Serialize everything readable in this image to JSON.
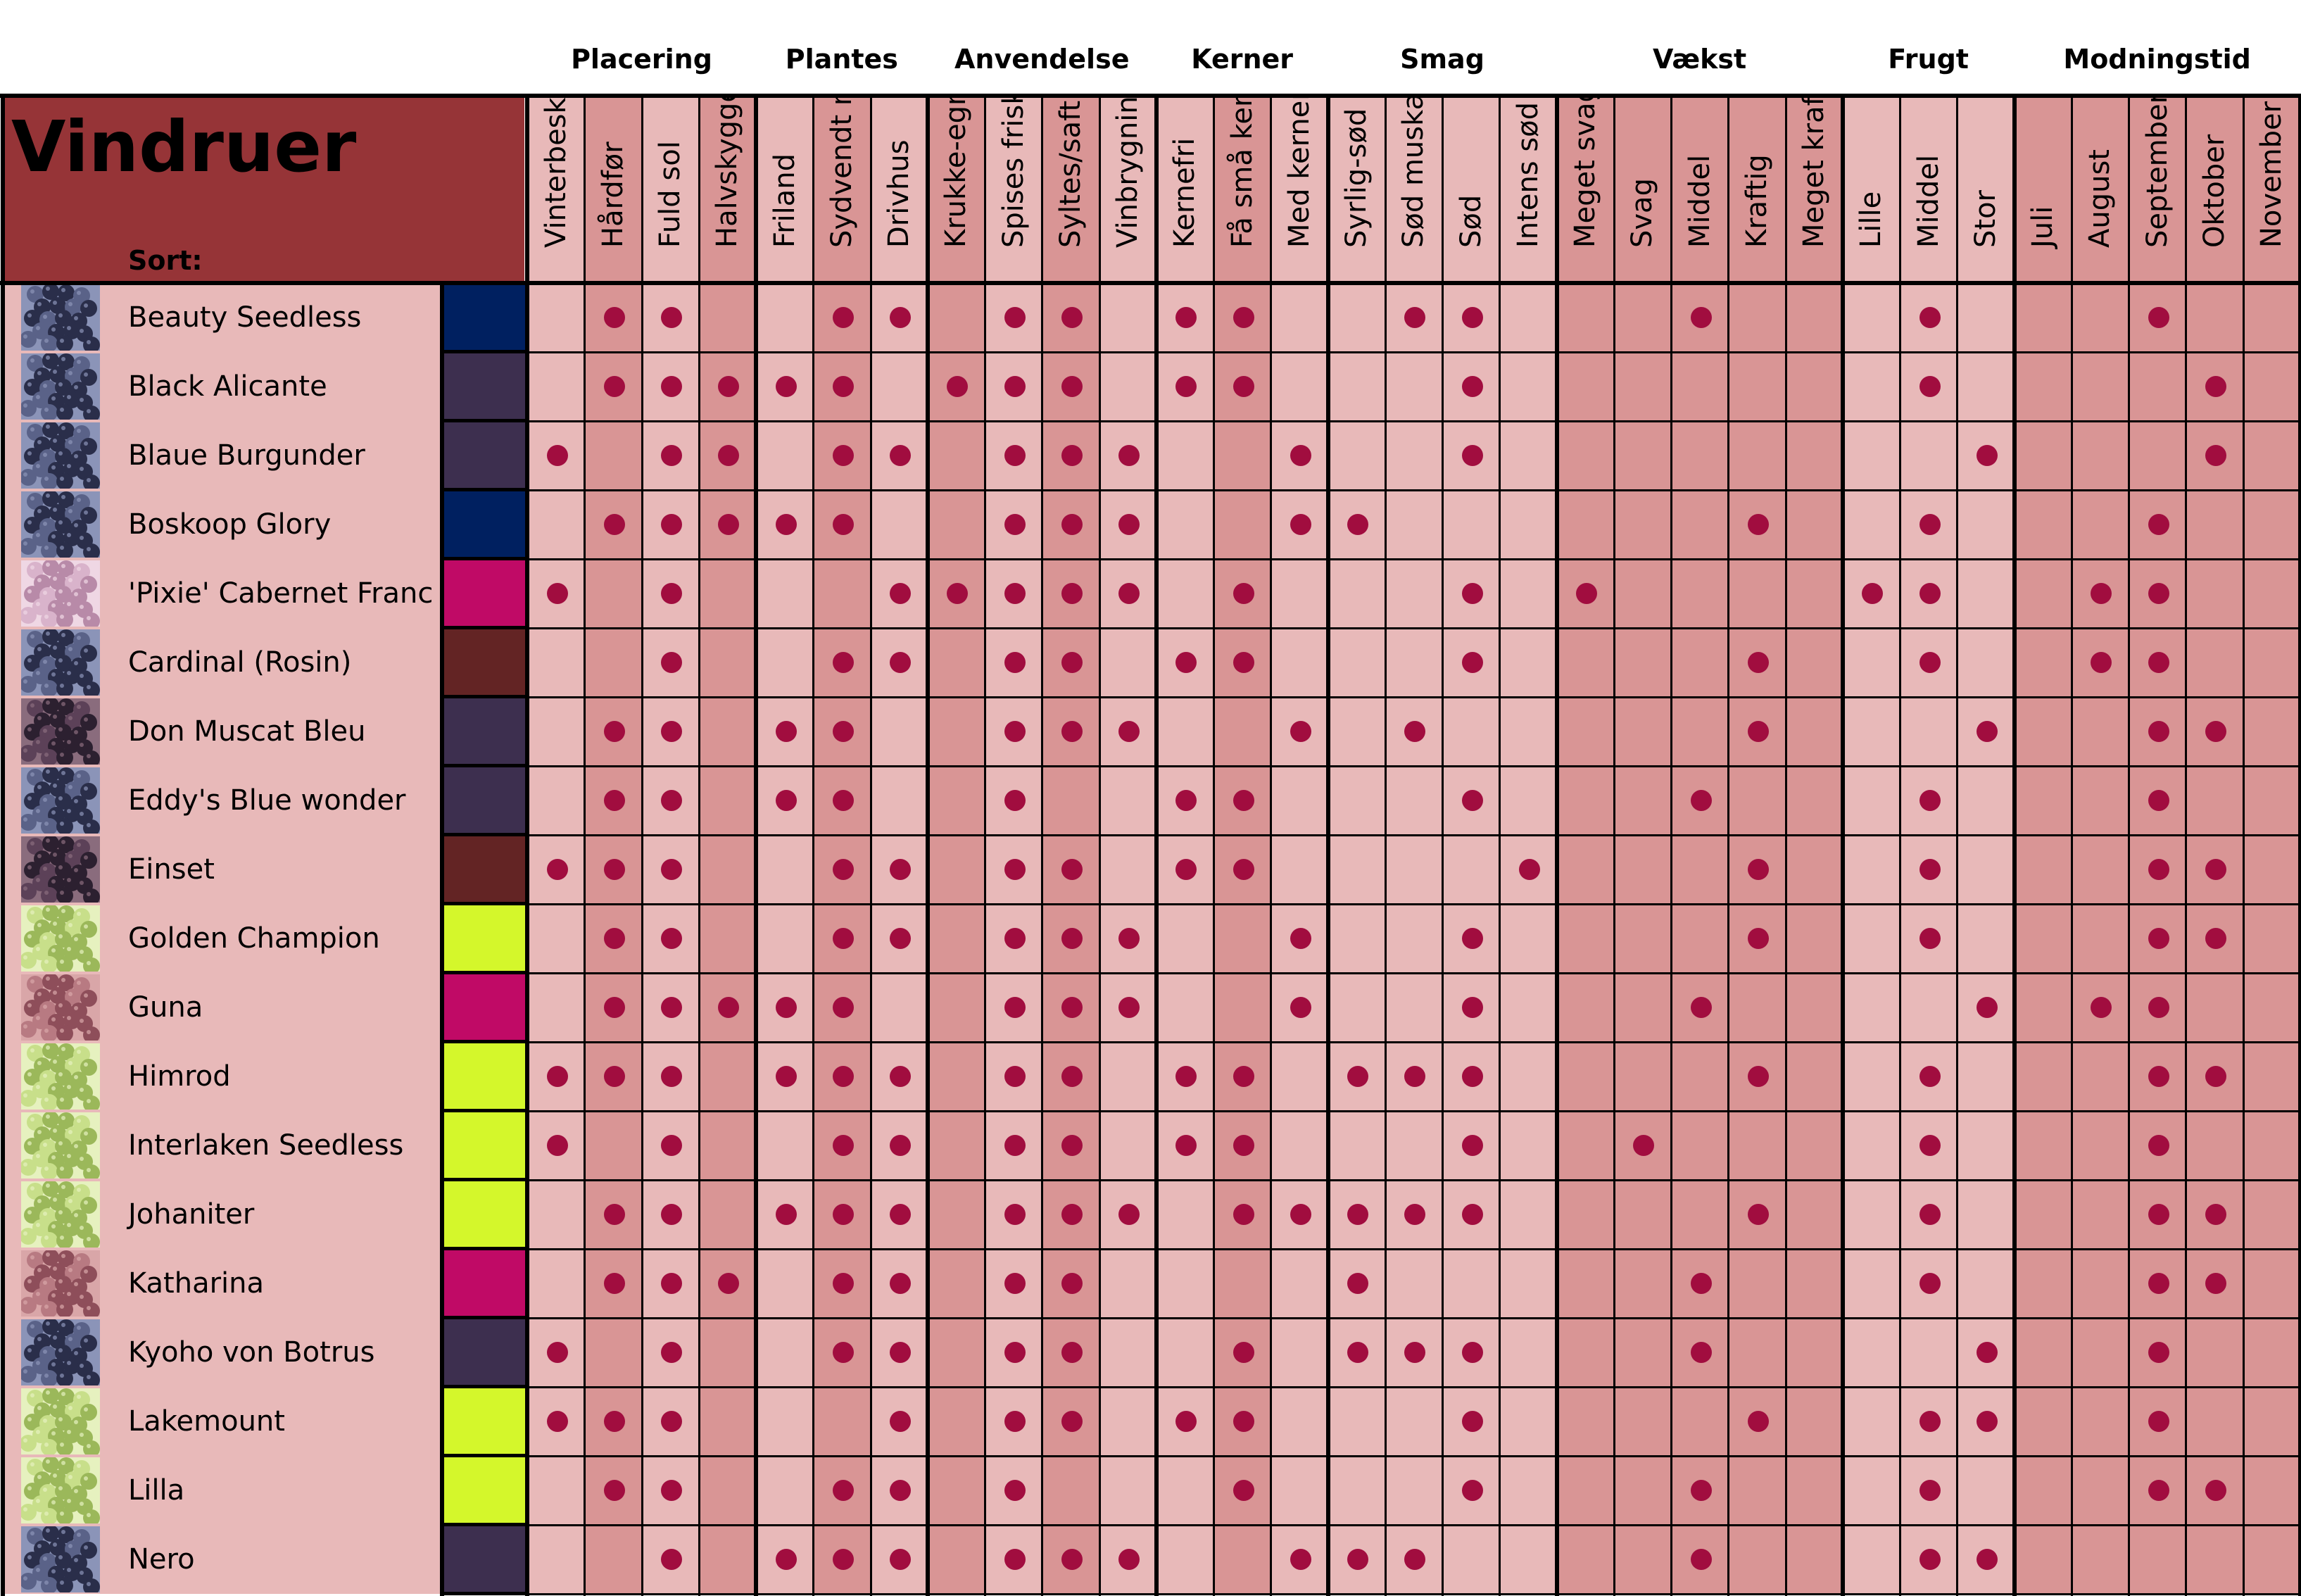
{
  "title": "Vindruer",
  "sort_label": "Sort:",
  "groups": [
    {
      "label": "Placering",
      "span": 4
    },
    {
      "label": "Plantes",
      "span": 3
    },
    {
      "label": "Anvendelse",
      "span": 4
    },
    {
      "label": "Kerner",
      "span": 3
    },
    {
      "label": "Smag",
      "span": 4
    },
    {
      "label": "Vækst",
      "span": 5
    },
    {
      "label": "Frugt",
      "span": 3
    },
    {
      "label": "Modningstid",
      "span": 5
    }
  ],
  "columns": [
    "Vinterbeskyttelse",
    "Hårdfør",
    "Fuld sol",
    "Halvskygge",
    "Friland",
    "Sydvendt mur",
    "Drivhus",
    "Krukke-egnet",
    "Spises frisk",
    "Syltes/saft",
    "Vinbrygning",
    "Kernefri",
    "Få små kerner",
    "Med kerner",
    "Syrlig-sød",
    "Sød muskat-",
    "Sød",
    "Intens sød",
    "Meget svag",
    "Svag",
    "Middel",
    "Kraftig",
    "Meget kraftig",
    "Lille",
    "Middel",
    "Stor",
    "Juli",
    "August",
    "September",
    "Oktober",
    "November"
  ],
  "colors": {
    "light_pink": "#e8b9b9",
    "dark_pink": "#d99595",
    "title_red": "#963437",
    "dot": "#a10d3f",
    "swatch_navy": "#002060",
    "swatch_purple": "#3d2f4f",
    "swatch_magenta": "#c00a66",
    "swatch_brown": "#632424",
    "swatch_lime": "#d4f72b"
  },
  "varieties": [
    {
      "name": "Beauty Seedless",
      "color": "#002060",
      "thumb": "blue-grape-thumbnail",
      "marks": [
        1,
        2,
        5,
        6,
        8,
        9,
        11,
        12,
        15,
        16,
        20,
        24,
        28
      ]
    },
    {
      "name": "Black Alicante",
      "color": "#3d2f4f",
      "thumb": "blue-grape-thumbnail",
      "marks": [
        1,
        2,
        3,
        4,
        5,
        7,
        8,
        9,
        11,
        12,
        16,
        24,
        29
      ]
    },
    {
      "name": "Blaue Burgunder",
      "color": "#3d2f4f",
      "thumb": "blue-grape-thumbnail",
      "marks": [
        0,
        2,
        3,
        5,
        6,
        8,
        9,
        10,
        13,
        16,
        25,
        29
      ]
    },
    {
      "name": "Boskoop Glory",
      "color": "#002060",
      "thumb": "blue-grape-thumbnail",
      "marks": [
        1,
        2,
        3,
        4,
        5,
        8,
        9,
        10,
        13,
        14,
        21,
        24,
        28
      ]
    },
    {
      "name": "'Pixie' Cabernet Franc",
      "color": "#c00a66",
      "thumb": "pink-grape-thumbnail",
      "marks": [
        0,
        2,
        6,
        7,
        8,
        9,
        10,
        12,
        16,
        18,
        23,
        24,
        27,
        28
      ]
    },
    {
      "name": "Cardinal (Rosin)",
      "color": "#632424",
      "thumb": "blue-grape-thumbnail",
      "marks": [
        2,
        5,
        6,
        8,
        9,
        11,
        12,
        16,
        21,
        24,
        27,
        28
      ]
    },
    {
      "name": "Don Muscat Bleu",
      "color": "#3d2f4f",
      "thumb": "purple-grape-thumbnail",
      "marks": [
        1,
        2,
        4,
        5,
        8,
        9,
        10,
        13,
        15,
        21,
        25,
        28,
        29
      ]
    },
    {
      "name": "Eddy's Blue wonder",
      "color": "#3d2f4f",
      "thumb": "blue-grape-thumbnail",
      "marks": [
        1,
        2,
        4,
        5,
        8,
        11,
        12,
        16,
        20,
        24,
        28
      ]
    },
    {
      "name": "Einset",
      "color": "#632424",
      "thumb": "purple-grape-thumbnail",
      "marks": [
        0,
        1,
        2,
        5,
        6,
        8,
        9,
        11,
        12,
        17,
        21,
        24,
        28,
        29
      ]
    },
    {
      "name": "Golden Champion",
      "color": "#d4f72b",
      "thumb": "green-grape-thumbnail",
      "marks": [
        1,
        2,
        5,
        6,
        8,
        9,
        10,
        13,
        16,
        21,
        24,
        28,
        29
      ]
    },
    {
      "name": "Guna",
      "color": "#c00a66",
      "thumb": "red-grape-thumbnail",
      "marks": [
        1,
        2,
        3,
        4,
        5,
        8,
        9,
        10,
        13,
        16,
        20,
        25,
        27,
        28
      ]
    },
    {
      "name": "Himrod",
      "color": "#d4f72b",
      "thumb": "green-grape-thumbnail",
      "marks": [
        0,
        1,
        2,
        4,
        5,
        6,
        8,
        9,
        11,
        12,
        14,
        15,
        16,
        21,
        24,
        28,
        29
      ]
    },
    {
      "name": "Interlaken Seedless",
      "color": "#d4f72b",
      "thumb": "green-grape-thumbnail",
      "marks": [
        0,
        2,
        5,
        6,
        8,
        9,
        11,
        12,
        16,
        19,
        24,
        28
      ]
    },
    {
      "name": "Johaniter",
      "color": "#d4f72b",
      "thumb": "green-grape-thumbnail",
      "marks": [
        1,
        2,
        4,
        5,
        6,
        8,
        9,
        10,
        12,
        13,
        14,
        15,
        16,
        21,
        24,
        28,
        29
      ]
    },
    {
      "name": "Katharina",
      "color": "#c00a66",
      "thumb": "red-grape-thumbnail",
      "marks": [
        1,
        2,
        3,
        5,
        6,
        8,
        9,
        14,
        20,
        24,
        28,
        29
      ]
    },
    {
      "name": "Kyoho von Botrus",
      "color": "#3d2f4f",
      "thumb": "blue-grape-thumbnail",
      "marks": [
        0,
        2,
        5,
        6,
        8,
        9,
        12,
        14,
        15,
        16,
        20,
        25,
        28
      ]
    },
    {
      "name": "Lakemount",
      "color": "#d4f72b",
      "thumb": "green-grape-thumbnail",
      "marks": [
        0,
        1,
        2,
        6,
        8,
        9,
        11,
        12,
        16,
        21,
        24,
        25,
        28
      ]
    },
    {
      "name": "Lilla",
      "color": "#d4f72b",
      "thumb": "green-grape-thumbnail",
      "marks": [
        1,
        2,
        5,
        6,
        8,
        12,
        16,
        20,
        24,
        28,
        29
      ]
    },
    {
      "name": "Nero",
      "color": "#3d2f4f",
      "thumb": "blue-grape-thumbnail",
      "marks": [
        2,
        4,
        5,
        6,
        8,
        9,
        10,
        13,
        14,
        15,
        20,
        24,
        25
      ]
    }
  ]
}
